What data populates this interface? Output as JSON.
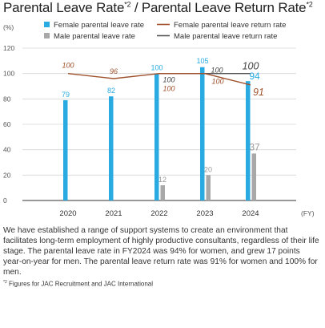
{
  "title": {
    "main": "Parental Leave Rate",
    "sup1": "*2",
    "sep": " / Parental Leave Return Rate",
    "sup2": "*2"
  },
  "chart_data": {
    "type": "bar",
    "unit_label": "(%)",
    "x_unit": "(FY)",
    "categories": [
      "2020",
      "2021",
      "2022",
      "2023",
      "2024"
    ],
    "ylim": [
      0,
      120
    ],
    "yticks": [
      0,
      20,
      40,
      60,
      80,
      100,
      120
    ],
    "grid": true,
    "legend_position": "top",
    "series": [
      {
        "name": "Female parental leave rate",
        "type": "bar",
        "color": "#29abe2",
        "values": [
          79,
          82,
          100,
          105,
          94
        ],
        "labels": [
          "79",
          "82",
          "100",
          "105",
          "94"
        ]
      },
      {
        "name": "Male parental leave rate",
        "type": "bar",
        "color": "#a8a8a8",
        "values": [
          null,
          null,
          12,
          20,
          37
        ],
        "labels": [
          "",
          "",
          "12",
          "20",
          "37"
        ]
      },
      {
        "name": "Female parental leave return rate",
        "type": "line",
        "color": "#a0522d",
        "values": [
          100,
          96,
          100,
          100,
          91
        ],
        "labels": [
          "100",
          "96",
          "100",
          "100",
          "91"
        ]
      },
      {
        "name": "Male parental leave return rate",
        "type": "line",
        "color": "#555555",
        "values": [
          null,
          null,
          100,
          100,
          100
        ],
        "labels": [
          "",
          "",
          "100",
          "100",
          "100"
        ]
      }
    ]
  },
  "description": "We have established a range of support systems to create an environment that facilitates long-term employment of highly productive consultants, regardless of their life stage. The parental leave rate in FY2024 was 94% for women, and grew 17 points year-on-year for men. The parental leave return rate was 91% for women and 100% for men.",
  "footnote": {
    "mark": "*2",
    "text": " Figures for JAC Recruitment and JAC International"
  }
}
